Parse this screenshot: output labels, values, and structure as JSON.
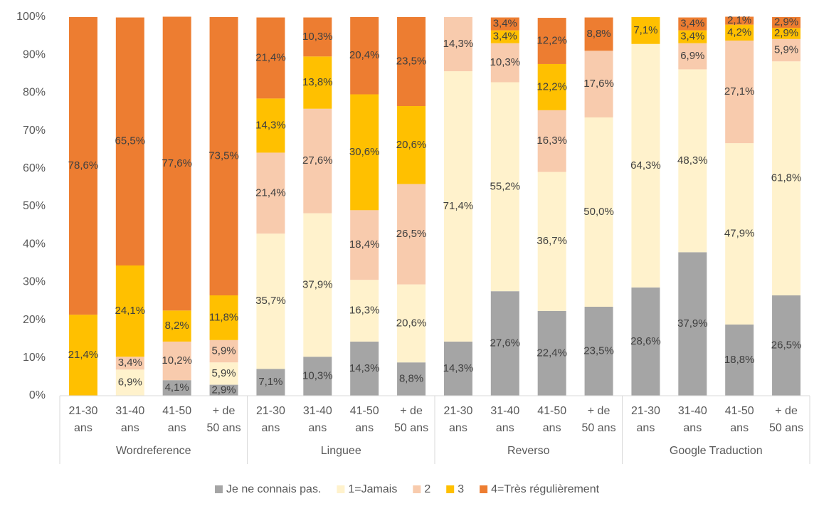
{
  "chart_data": {
    "type": "stacked_bar",
    "categories": [
      "21-30 ans",
      "31-40 ans",
      "41-50 ans",
      "+ de 50 ans",
      "21-30 ans",
      "31-40 ans",
      "41-50 ans",
      "+ de 50 ans",
      "21-30 ans",
      "31-40 ans",
      "41-50 ans",
      "+ de 50 ans",
      "21-30 ans",
      "31-40 ans",
      "41-50 ans",
      "+ de 50 ans"
    ],
    "groups": [
      "Wordreference",
      "Linguee",
      "Reverso",
      "Google Traduction"
    ],
    "series": [
      {
        "name": "Je ne connais pas.",
        "color": "#a5a5a5",
        "values": [
          0,
          0,
          4.1,
          2.9,
          7.1,
          10.3,
          14.3,
          8.8,
          14.3,
          27.6,
          22.4,
          23.5,
          28.6,
          37.9,
          18.8,
          26.5
        ],
        "value_labels": [
          null,
          null,
          "4,1%",
          "2,9%",
          "7,1%",
          "10,3%",
          "14,3%",
          "8,8%",
          "14,3%",
          "27,6%",
          "22,4%",
          "23,5%",
          "28,6%",
          "37,9%",
          "18,8%",
          "26,5%"
        ]
      },
      {
        "name": "1=Jamais",
        "color": "#fff2cc",
        "values": [
          0,
          6.9,
          0,
          5.9,
          35.7,
          37.9,
          16.3,
          20.6,
          71.4,
          55.2,
          36.7,
          50.0,
          64.3,
          48.3,
          47.9,
          61.8
        ],
        "value_labels": [
          null,
          "6,9%",
          null,
          "5,9%",
          "35,7%",
          "37,9%",
          "16,3%",
          "20,6%",
          "71,4%",
          "55,2%",
          "36,7%",
          "50,0%",
          "64,3%",
          "48,3%",
          "47,9%",
          "61,8%"
        ]
      },
      {
        "name": "2",
        "color": "#f8cbad",
        "values": [
          0,
          3.4,
          10.2,
          5.9,
          21.4,
          27.6,
          18.4,
          26.5,
          14.3,
          10.3,
          16.3,
          17.6,
          0,
          6.9,
          27.1,
          5.9
        ],
        "value_labels": [
          null,
          "3,4%",
          "10,2%",
          "5,9%",
          "21,4%",
          "27,6%",
          "18,4%",
          "26,5%",
          "14,3%",
          "10,3%",
          "16,3%",
          "17,6%",
          null,
          "6,9%",
          "27,1%",
          "5,9%"
        ]
      },
      {
        "name": "3",
        "color": "#ffc000",
        "values": [
          21.4,
          24.1,
          8.2,
          11.8,
          14.3,
          13.8,
          30.6,
          20.6,
          0,
          3.4,
          12.2,
          0,
          7.1,
          3.4,
          4.2,
          2.9
        ],
        "value_labels": [
          "21,4%",
          "24,1%",
          "8,2%",
          "11,8%",
          "14,3%",
          "13,8%",
          "30,6%",
          "20,6%",
          null,
          "3,4%",
          "12,2%",
          null,
          "7,1%",
          "3,4%",
          "4,2%",
          "2,9%"
        ]
      },
      {
        "name": "4=Très régulièrement",
        "color": "#ed7d31",
        "values": [
          78.6,
          65.5,
          77.6,
          73.5,
          21.4,
          10.3,
          20.4,
          23.5,
          0,
          3.4,
          12.2,
          8.8,
          0,
          3.4,
          2.1,
          2.9
        ],
        "value_labels": [
          "78,6%",
          "65,5%",
          "77,6%",
          "73,5%",
          "21,4%",
          "10,3%",
          "20,4%",
          "23,5%",
          null,
          "3,4%",
          "12,2%",
          "8,8%",
          null,
          "3,4%",
          "2,1%",
          "2,9%"
        ]
      }
    ],
    "ylim": [
      0,
      100
    ],
    "yticks": [
      {
        "value": 0,
        "label": "0%"
      },
      {
        "value": 10,
        "label": "10%"
      },
      {
        "value": 20,
        "label": "20%"
      },
      {
        "value": 30,
        "label": "30%"
      },
      {
        "value": 40,
        "label": "40%"
      },
      {
        "value": 50,
        "label": "50%"
      },
      {
        "value": 60,
        "label": "60%"
      },
      {
        "value": 70,
        "label": "70%"
      },
      {
        "value": 80,
        "label": "80%"
      },
      {
        "value": 90,
        "label": "90%"
      },
      {
        "value": 100,
        "label": "100%"
      }
    ],
    "legend": "bottom"
  }
}
